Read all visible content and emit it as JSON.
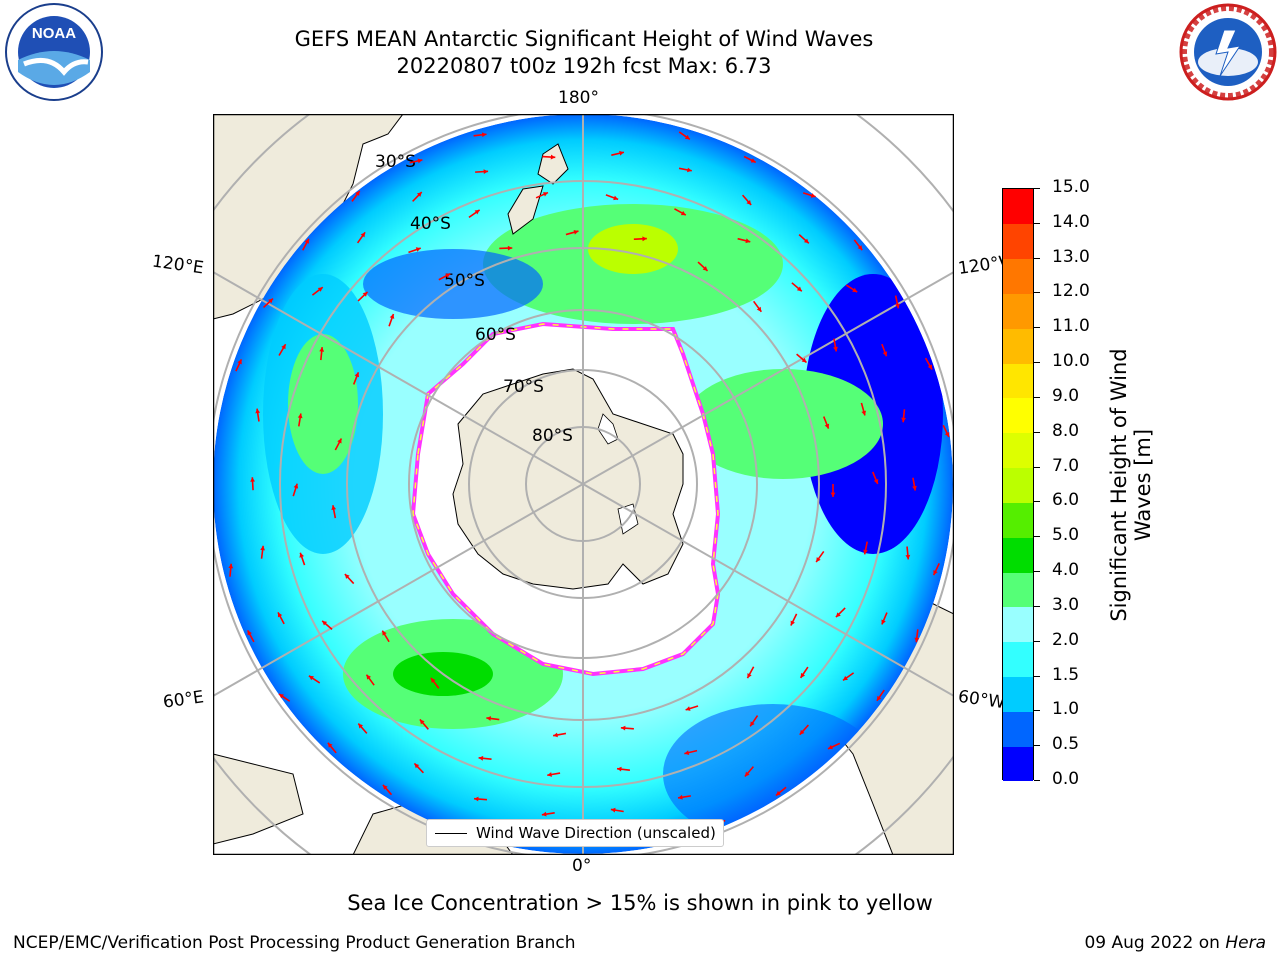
{
  "header": {
    "title_line1": "GEFS MEAN Antarctic Significant Height of Wind Waves",
    "title_line2": "20220807 t00z 192h fcst   Max: 6.73"
  },
  "logos": {
    "noaa": {
      "text": "NOAA",
      "ring_text": "NATIONAL OCEANIC AND ATMOSPHERIC ADMINISTRATION · U.S. DEPARTMENT OF COMMERCE"
    },
    "nws": {
      "ring_text": "NATIONAL WEATHER SERVICE"
    }
  },
  "map": {
    "projection": "south polar stereographic",
    "lon_labels": {
      "top": "180°",
      "bottom": "0°",
      "upper_left": "120°E",
      "upper_right": "120°W",
      "lower_left": "60°E",
      "lower_right": "60°W"
    },
    "lat_labels": [
      "30°S",
      "40°S",
      "50°S",
      "60°S",
      "70°S",
      "80°S"
    ],
    "legend": {
      "entry": "Wind Wave Direction (unscaled)"
    },
    "colors": {
      "land": "#efebdc",
      "ice_region": "#ffffff",
      "ice_edge_pink": "#ff33ff",
      "ice_edge_yellow": "#ffff33",
      "arrow": "#ff0000",
      "gridline": "#b0b0b0"
    }
  },
  "colorbar": {
    "title": "Significant Height of Wind Waves [m]",
    "title_line1": "Significant Height of Wind",
    "title_line2": "Waves [m]",
    "ticks": [
      "0.0",
      "0.5",
      "1.0",
      "1.5",
      "2.0",
      "3.0",
      "4.0",
      "5.0",
      "6.0",
      "7.0",
      "8.0",
      "9.0",
      "10.0",
      "11.0",
      "12.0",
      "13.0",
      "14.0",
      "15.0"
    ],
    "colors": [
      "#0000ff",
      "#0066ff",
      "#00ccff",
      "#33ffff",
      "#99ffff",
      "#55ff77",
      "#00dd00",
      "#55ee00",
      "#bbff00",
      "#ddff00",
      "#ffff00",
      "#ffe600",
      "#ffbb00",
      "#ff9900",
      "#ff7700",
      "#ff4400",
      "#ff0000"
    ]
  },
  "footnote": "Sea Ice Concentration > 15% is shown in pink to yellow",
  "footer": {
    "left": "NCEP/EMC/Verification Post Processing Product Generation Branch",
    "right_date": "09 Aug 2022 on ",
    "right_host": "Hera"
  }
}
